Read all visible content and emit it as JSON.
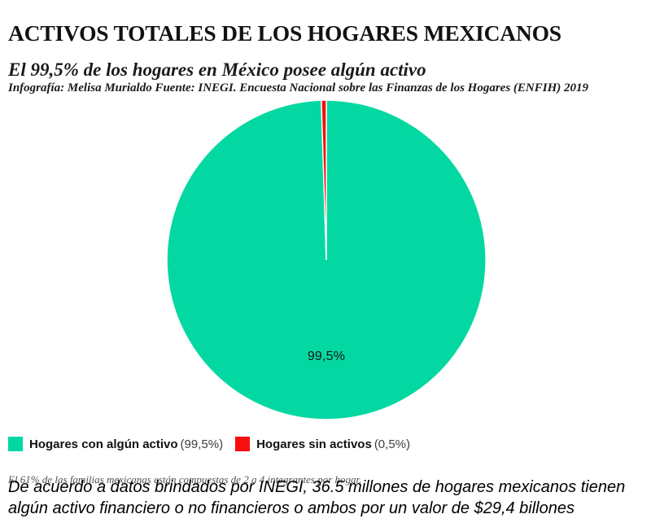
{
  "header": {
    "title": "ACTIVOS TOTALES DE LOS HOGARES MEXICANOS",
    "subtitle": "El 99,5% de los hogares en México posee algún activo",
    "credit": "Infografía: Melisa Murialdo Fuente: INEGI. Encuesta Nacional sobre las Finanzas de los Hogares (ENFIH) 2019"
  },
  "chart_data": {
    "type": "pie",
    "title": "ACTIVOS TOTALES DE LOS HOGARES MEXICANOS",
    "start_angle_deg": 0,
    "direction": "clockwise",
    "legend_position": "bottom-left",
    "slice_border_color": "#ffffff",
    "slices": [
      {
        "label": "Hogares con algún activo",
        "value": 99.5,
        "display": "99,5%",
        "color": "#04D8A2"
      },
      {
        "label": "Hogares sin activos",
        "value": 0.5,
        "display": "0,5%",
        "color": "#F80E0E"
      }
    ]
  },
  "legend": {
    "items": [
      {
        "label": "Hogares con algún activo",
        "value": "(99,5%)",
        "color": "#04D8A2"
      },
      {
        "label": "Hogares sin activos",
        "value": "(0,5%)",
        "color": "#F80E0E"
      }
    ]
  },
  "footer": {
    "note": "El 61% de las familias mexicanas están compuestas de 2 a 4 integrantes por hogar.",
    "highlight_lines": [
      "De acuerdo a datos brindados por INEGI, 36.5 millones de hogares mexicanos tienen",
      "algún activo financiero o no financieros o ambos por un valor de $29,4 billones"
    ],
    "highlight_color": "#1176B5"
  }
}
